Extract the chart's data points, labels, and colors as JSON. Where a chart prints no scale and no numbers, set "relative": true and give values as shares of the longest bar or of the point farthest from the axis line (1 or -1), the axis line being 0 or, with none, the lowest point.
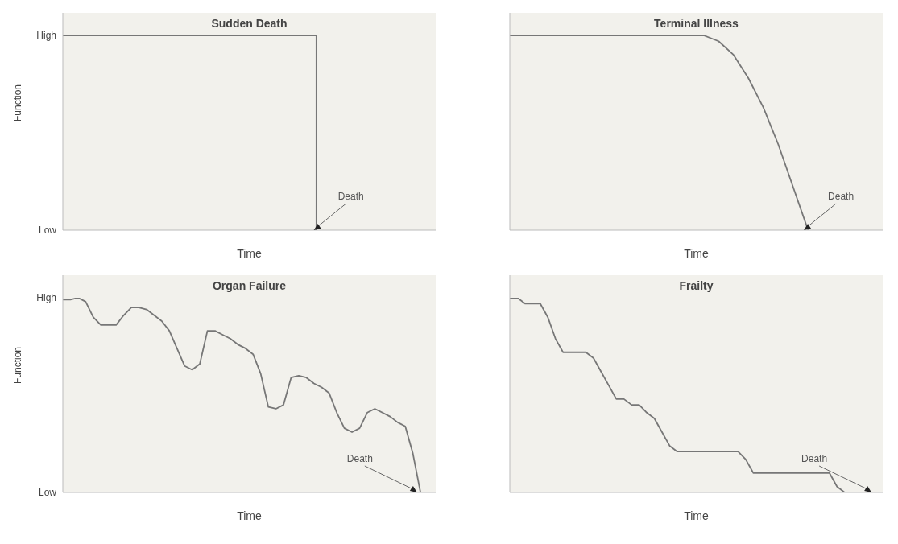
{
  "chart_data": [
    {
      "type": "step",
      "title": "Sudden Death",
      "xlabel": "Time",
      "ylabel": "Function",
      "categories": [
        null,
        null,
        null,
        null,
        null,
        null,
        null,
        null,
        null,
        null,
        null,
        null,
        null,
        null,
        null,
        null,
        null,
        null,
        null,
        null,
        null,
        null,
        null,
        null,
        null,
        null
      ],
      "values": [
        1,
        1,
        1,
        1,
        1,
        1,
        1,
        1,
        1,
        1,
        1,
        1,
        1,
        1,
        1,
        1,
        1,
        0,
        null,
        null,
        null,
        null,
        null,
        null,
        null,
        null
      ],
      "color": "#777777",
      "relative": true,
      "annotations": [
        "Low",
        "High",
        "Death"
      ]
    },
    {
      "type": "line",
      "title": "Terminal Illness",
      "xlabel": "Time",
      "categories": [
        null,
        null,
        null,
        null,
        null,
        null,
        null,
        null,
        null,
        null,
        null,
        null,
        null,
        null,
        null,
        null,
        null,
        null,
        null,
        null,
        null,
        null,
        null,
        null,
        null,
        null
      ],
      "values": [
        1,
        1,
        1,
        1,
        1,
        1,
        1,
        1,
        1,
        1,
        1,
        1,
        1,
        1,
        0.97,
        0.9,
        0.78,
        0.63,
        0.44,
        0.22,
        0,
        null,
        null,
        null,
        null,
        null
      ],
      "color": "#777777",
      "relative": true,
      "annotations": [
        "Death"
      ]
    },
    {
      "type": "line",
      "title": "Organ Failure",
      "xlabel": "Time",
      "ylabel": "Function",
      "categories": [
        null,
        null,
        null,
        null,
        null,
        null,
        null,
        null,
        null,
        null,
        null,
        null,
        null,
        null,
        null,
        null,
        null,
        null,
        null,
        null,
        null,
        null,
        null,
        null,
        null,
        null,
        null,
        null,
        null,
        null,
        null,
        null,
        null,
        null,
        null,
        null,
        null,
        null,
        null,
        null,
        null,
        null,
        null,
        null,
        null,
        null,
        null,
        null,
        null,
        null
      ],
      "values": [
        0.99,
        0.99,
        1,
        0.98,
        0.9,
        0.86,
        0.86,
        0.86,
        0.91,
        0.95,
        0.95,
        0.94,
        0.91,
        0.88,
        0.83,
        0.74,
        0.65,
        0.63,
        0.66,
        0.83,
        0.83,
        0.81,
        0.79,
        0.76,
        0.74,
        0.71,
        0.61,
        0.44,
        0.43,
        0.45,
        0.59,
        0.6,
        0.59,
        0.56,
        0.54,
        0.51,
        0.41,
        0.33,
        0.31,
        0.33,
        0.41,
        0.43,
        0.41,
        0.39,
        0.36,
        0.34,
        0.2,
        0,
        null,
        null
      ],
      "color": "#777777",
      "relative": true,
      "annotations": [
        "Low",
        "High",
        "Death"
      ]
    },
    {
      "type": "line",
      "title": "Frailty",
      "xlabel": "Time",
      "categories": [
        null,
        null,
        null,
        null,
        null,
        null,
        null,
        null,
        null,
        null,
        null,
        null,
        null,
        null,
        null,
        null,
        null,
        null,
        null,
        null,
        null,
        null,
        null,
        null,
        null,
        null,
        null,
        null,
        null,
        null,
        null,
        null,
        null,
        null,
        null,
        null,
        null,
        null,
        null,
        null,
        null,
        null,
        null,
        null,
        null,
        null,
        null,
        null,
        null,
        null
      ],
      "values": [
        1,
        1,
        0.97,
        0.97,
        0.97,
        0.9,
        0.79,
        0.72,
        0.72,
        0.72,
        0.72,
        0.69,
        0.62,
        0.55,
        0.48,
        0.48,
        0.45,
        0.45,
        0.41,
        0.38,
        0.31,
        0.24,
        0.21,
        0.21,
        0.21,
        0.21,
        0.21,
        0.21,
        0.21,
        0.21,
        0.21,
        0.17,
        0.1,
        0.1,
        0.1,
        0.1,
        0.1,
        0.1,
        0.1,
        0.1,
        0.1,
        0.1,
        0.1,
        0.03,
        0,
        0,
        0,
        0,
        0,
        null
      ],
      "color": "#777777",
      "relative": true,
      "annotations": [
        "Death"
      ]
    }
  ]
}
